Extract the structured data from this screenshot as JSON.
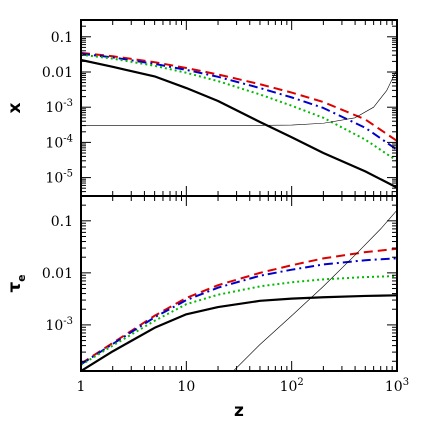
{
  "chart_data": [
    {
      "type": "line",
      "panel": "top",
      "ylabel": "x",
      "xlabel": "",
      "xscale": "log",
      "yscale": "log",
      "xlim": [
        1,
        1000
      ],
      "ylim": [
        3e-06,
        0.3
      ],
      "yticks": [
        {
          "value": 0.1,
          "label": "0.1"
        },
        {
          "value": 0.01,
          "label": "0.01"
        },
        {
          "value": 0.001,
          "label": "10",
          "sup": "-3"
        },
        {
          "value": 0.0001,
          "label": "10",
          "sup": "-4"
        },
        {
          "value": 1e-05,
          "label": "10",
          "sup": "-5"
        }
      ],
      "series": [
        {
          "color": "#dd0000",
          "style": "dashed",
          "width": 2,
          "x": [
            1,
            2,
            5,
            10,
            20,
            50,
            100,
            200,
            500,
            1000
          ],
          "y": [
            0.035,
            0.028,
            0.019,
            0.013,
            0.0085,
            0.0045,
            0.0026,
            0.0014,
            0.00045,
            0.00011
          ]
        },
        {
          "color": "#0000cc",
          "style": "dashdot",
          "width": 2,
          "x": [
            1,
            2,
            5,
            10,
            20,
            50,
            100,
            200,
            500,
            1000
          ],
          "y": [
            0.033,
            0.026,
            0.017,
            0.0115,
            0.0073,
            0.0035,
            0.0019,
            0.00095,
            0.00026,
            6.2e-05
          ]
        },
        {
          "color": "#00bb00",
          "style": "dotted",
          "width": 2,
          "x": [
            1,
            2,
            5,
            10,
            20,
            50,
            100,
            200,
            500,
            1000
          ],
          "y": [
            0.031,
            0.024,
            0.015,
            0.0095,
            0.0055,
            0.0023,
            0.0011,
            0.0005,
            0.00012,
            3e-05
          ]
        },
        {
          "color": "#000000",
          "style": "solid",
          "width": 2.2,
          "x": [
            1,
            2,
            5,
            10,
            20,
            50,
            100,
            200,
            500,
            1000
          ],
          "y": [
            0.022,
            0.014,
            0.0075,
            0.0035,
            0.0015,
            0.00038,
            0.00014,
            5e-05,
            1.5e-05,
            5.2e-06
          ]
        },
        {
          "color": "#000000",
          "style": "solid",
          "width": 0.6,
          "x": [
            1,
            10,
            30,
            100,
            200,
            400,
            600,
            800,
            1000
          ],
          "y": [
            0.0003,
            0.0003,
            0.0003,
            0.00031,
            0.00035,
            0.0005,
            0.001,
            0.003,
            0.012
          ]
        }
      ]
    },
    {
      "type": "line",
      "panel": "bottom",
      "ylabel": "τ",
      "ylabel_sub": "e",
      "xlabel": "z",
      "xscale": "log",
      "yscale": "log",
      "xlim": [
        1,
        1000
      ],
      "ylim": [
        0.00013,
        0.3
      ],
      "xticks": [
        {
          "value": 1,
          "label": "1"
        },
        {
          "value": 10,
          "label": "10"
        },
        {
          "value": 100,
          "label": "10",
          "sup": "2"
        },
        {
          "value": 1000,
          "label": "10",
          "sup": "3"
        }
      ],
      "yticks": [
        {
          "value": 0.1,
          "label": "0.1"
        },
        {
          "value": 0.01,
          "label": "0.01"
        },
        {
          "value": 0.001,
          "label": "10",
          "sup": "-3"
        }
      ],
      "series": [
        {
          "color": "#dd0000",
          "style": "dashed",
          "width": 2,
          "x": [
            1,
            2,
            5,
            10,
            20,
            50,
            100,
            200,
            500,
            1000
          ],
          "y": [
            0.00018,
            0.00045,
            0.0015,
            0.0033,
            0.0058,
            0.01,
            0.014,
            0.019,
            0.025,
            0.029
          ]
        },
        {
          "color": "#0000cc",
          "style": "dashdot",
          "width": 2,
          "x": [
            1,
            2,
            5,
            10,
            20,
            50,
            100,
            200,
            500,
            1000
          ],
          "y": [
            0.000175,
            0.00043,
            0.0014,
            0.003,
            0.0052,
            0.0088,
            0.0115,
            0.0145,
            0.0175,
            0.019
          ]
        },
        {
          "color": "#00bb00",
          "style": "dotted",
          "width": 2,
          "x": [
            1,
            2,
            5,
            10,
            20,
            50,
            100,
            200,
            500,
            1000
          ],
          "y": [
            0.00017,
            0.0004,
            0.0012,
            0.0025,
            0.0038,
            0.0055,
            0.0066,
            0.0075,
            0.0083,
            0.0087
          ]
        },
        {
          "color": "#000000",
          "style": "solid",
          "width": 2.2,
          "x": [
            1,
            2,
            5,
            10,
            20,
            50,
            100,
            200,
            500,
            1000
          ],
          "y": [
            0.00013,
            0.00031,
            0.00088,
            0.0016,
            0.0022,
            0.0029,
            0.0032,
            0.0034,
            0.0036,
            0.0037
          ]
        },
        {
          "color": "#000000",
          "style": "solid",
          "width": 0.6,
          "x": [
            28,
            50,
            100,
            200,
            400,
            700,
            1000
          ],
          "y": [
            0.00013,
            0.00042,
            0.0015,
            0.0055,
            0.022,
            0.07,
            0.16
          ]
        }
      ]
    }
  ]
}
